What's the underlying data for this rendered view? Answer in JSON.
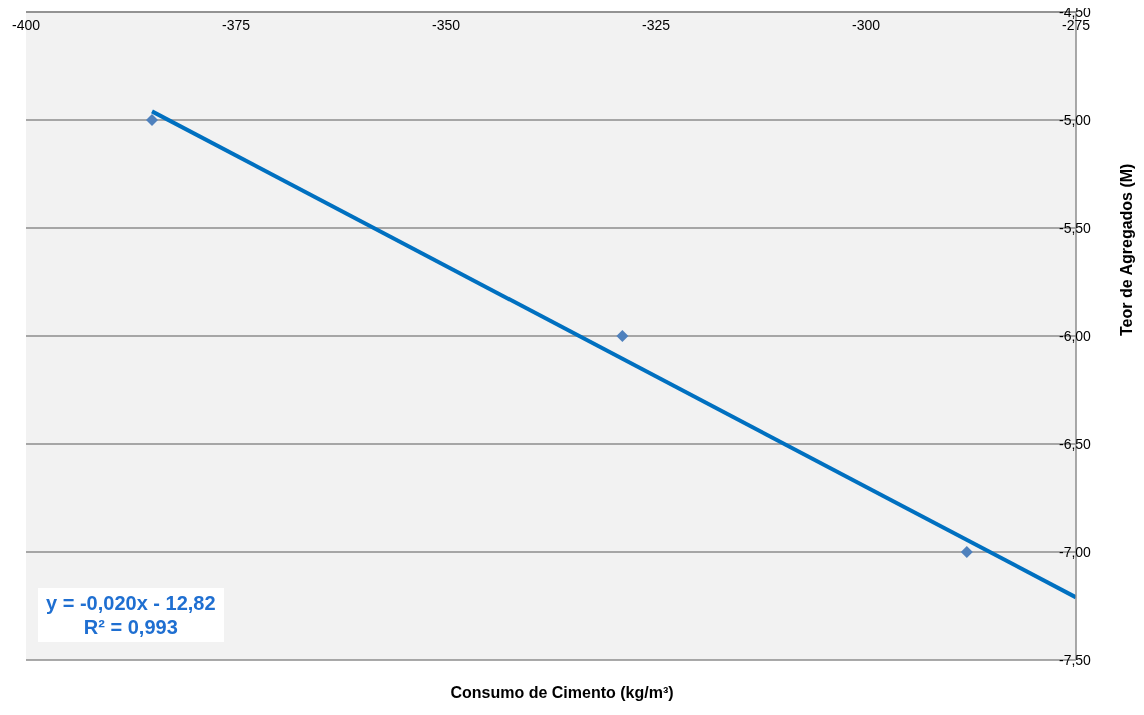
{
  "chart_data": {
    "type": "scatter",
    "xlabel": "Consumo de Cimento (kg/m³)",
    "ylabel": "Teor de Agregados (M)",
    "annotations": [
      "y = -0,020x - 12,82",
      "R² = 0,993"
    ],
    "series": [
      {
        "type": "scatter",
        "marker": "diamond",
        "color": "#4f81bd",
        "x": [
          -385,
          -329,
          -288
        ],
        "values": [
          -5.0,
          -6.0,
          -7.0
        ]
      },
      {
        "type": "line",
        "marker": "none",
        "color": "#0070c0",
        "x": [
          -385,
          -275
        ],
        "values": [
          -4.96,
          -7.21
        ]
      }
    ],
    "grid": "y",
    "legend": false,
    "xlim": [
      -400,
      -275
    ],
    "xticks": [
      -400,
      -375,
      -350,
      -325,
      -300,
      -275
    ],
    "ylim": [
      -7.5,
      -4.5
    ],
    "yticks": [
      {
        "value": -4.5,
        "label": "-4,50"
      },
      {
        "value": -5,
        "label": "-5,00"
      },
      {
        "value": -5.5,
        "label": "-5,50"
      },
      {
        "value": -6,
        "label": "-6,00"
      },
      {
        "value": -6.5,
        "label": "-6,50"
      },
      {
        "value": -7,
        "label": "-7,00"
      },
      {
        "value": -7.5,
        "label": "-7,50"
      }
    ]
  }
}
